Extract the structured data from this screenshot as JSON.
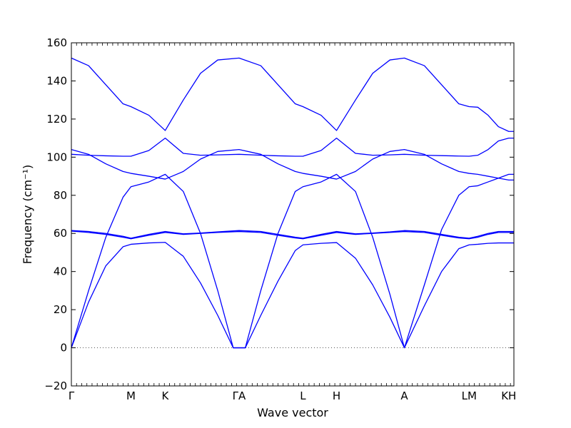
{
  "chart_data": {
    "type": "line",
    "xlabel": "Wave vector",
    "ylabel": "Frequency (cm⁻¹)",
    "ylim": [
      -20,
      160
    ],
    "yticks": [
      -20,
      0,
      20,
      40,
      60,
      80,
      100,
      120,
      140,
      160
    ],
    "grid": false,
    "line_color": "#0000ff",
    "zero_line_color": "#555555",
    "xlim": [
      0,
      25.7
    ],
    "symmetry_points": [
      {
        "label": "Γ",
        "x": 0
      },
      {
        "label": "M",
        "x": 3.46
      },
      {
        "label": "K",
        "x": 5.45
      },
      {
        "label": "ΓA",
        "x": 9.74
      },
      {
        "label": "L",
        "x": 13.45
      },
      {
        "label": "H",
        "x": 15.4
      },
      {
        "label": "A",
        "x": 19.34
      },
      {
        "label": "LM",
        "x": 23.1
      },
      {
        "label": "KH",
        "x": 25.4
      }
    ],
    "series": [
      {
        "x": [
          0,
          1,
          2,
          3,
          3.46,
          4.5,
          5.45,
          6.5,
          7.5,
          8.5,
          9.4,
          9.74,
          10.1,
          11,
          12,
          13,
          13.45,
          14.5,
          15.4,
          16.5,
          17.5,
          18.5,
          19.34,
          20.5,
          21.5,
          22.5,
          23.1,
          23.6,
          24.2,
          24.8,
          25.4,
          25.7
        ],
        "y": [
          0,
          24,
          43,
          53,
          54.3,
          55,
          55.3,
          48,
          34,
          17,
          0,
          0,
          0,
          17,
          35,
          51,
          54,
          54.8,
          55.2,
          47,
          33,
          16,
          0,
          22,
          40,
          52,
          54,
          54.3,
          54.8,
          55,
          55,
          55
        ]
      },
      {
        "x": [
          0,
          1,
          2,
          3,
          3.46,
          4.5,
          5.45,
          6.5,
          7.5,
          8.5,
          9.4,
          9.74,
          10.1,
          11,
          12,
          13,
          13.45,
          14.5,
          15.4,
          16.5,
          17.5,
          18.5,
          19.34,
          20.5,
          21.5,
          22.5,
          23.1,
          23.6,
          24.2,
          24.8,
          25.4,
          25.7
        ],
        "y": [
          0,
          30,
          58,
          79,
          84.5,
          87,
          91,
          82,
          60,
          30,
          0,
          0,
          0,
          30,
          60,
          82,
          84.5,
          87,
          91,
          82,
          58,
          28,
          0,
          33,
          62,
          80,
          84.5,
          85,
          87,
          89,
          91,
          91
        ]
      },
      {
        "x": [
          0,
          1,
          2,
          3,
          3.46,
          4.5,
          5.45,
          6.5,
          7.5,
          8.5,
          9.74,
          11,
          12,
          13,
          13.45,
          14.5,
          15.4,
          16.5,
          17.5,
          18.5,
          19.34,
          20.5,
          21.5,
          22.5,
          23.1,
          23.6,
          24.2,
          24.8,
          25.4,
          25.7
        ],
        "y": [
          61.5,
          61,
          60,
          58.5,
          57.5,
          59.5,
          61,
          59.8,
          60.2,
          60.8,
          61.5,
          61,
          59.5,
          58,
          57.5,
          59.5,
          61,
          59.8,
          60.2,
          60.8,
          61.5,
          61,
          59.5,
          58,
          57.5,
          58.5,
          60,
          61,
          61,
          61
        ]
      },
      {
        "x": [
          0,
          1,
          2,
          3,
          3.46,
          4.5,
          5.45,
          6.5,
          7.5,
          8.5,
          9.74,
          11,
          12,
          13,
          13.45,
          14.5,
          15.4,
          16.5,
          17.5,
          18.5,
          19.34,
          20.5,
          21.5,
          22.5,
          23.1,
          23.6,
          24.2,
          24.8,
          25.4,
          25.7
        ],
        "y": [
          61.2,
          60.5,
          59.5,
          58,
          57.2,
          59,
          60.5,
          59.5,
          60,
          60.5,
          61,
          60.5,
          59,
          57.6,
          57.2,
          59,
          60.5,
          59.5,
          60,
          60.5,
          61,
          60.5,
          59,
          57.6,
          57.2,
          58,
          59.5,
          60.5,
          60.5,
          60.5
        ]
      },
      {
        "x": [
          0,
          1,
          2,
          3,
          3.46,
          4.5,
          5.45,
          6.5,
          7.5,
          8.5,
          9.74,
          11,
          12,
          13,
          13.45,
          14.5,
          15.4,
          16.5,
          17.5,
          18.5,
          19.34,
          20.5,
          21.5,
          22.5,
          23.1,
          23.6,
          24.2,
          24.8,
          25.4,
          25.7
        ],
        "y": [
          104,
          101.5,
          96.5,
          92.5,
          91.5,
          90,
          88.5,
          92.5,
          99,
          103,
          104,
          101.5,
          96.5,
          92.5,
          91.5,
          90,
          88.5,
          92.5,
          99,
          103,
          104,
          101.5,
          96.5,
          92.5,
          91.5,
          91,
          90,
          89,
          88,
          88
        ]
      },
      {
        "x": [
          0,
          1,
          2,
          3,
          3.46,
          4.5,
          5.45,
          6.5,
          7.5,
          8.5,
          9.74,
          11,
          12,
          13,
          13.45,
          14.5,
          15.4,
          16.5,
          17.5,
          18.5,
          19.34,
          20.5,
          21.5,
          22.5,
          23.1,
          23.6,
          24.2,
          24.8,
          25.4,
          25.7
        ],
        "y": [
          101.5,
          101,
          100.7,
          100.5,
          100.5,
          103.5,
          110,
          102,
          101,
          101.2,
          101.5,
          101,
          100.7,
          100.5,
          100.5,
          103.5,
          110,
          102,
          101,
          101.2,
          101.5,
          101,
          100.8,
          100.6,
          100.5,
          101,
          104,
          108.5,
          110,
          110
        ]
      },
      {
        "x": [
          0,
          1,
          2,
          3,
          3.46,
          4.5,
          5.45,
          6.5,
          7.5,
          8.5,
          9.74,
          11,
          12,
          13,
          13.45,
          14.5,
          15.4,
          16.5,
          17.5,
          18.5,
          19.34,
          20.5,
          21.5,
          22.5,
          23.1,
          23.6,
          24.2,
          24.8,
          25.4,
          25.7
        ],
        "y": [
          152,
          148,
          138,
          128,
          126.5,
          122,
          114,
          130,
          144,
          151,
          152,
          148,
          138,
          128,
          126.5,
          122,
          114,
          130,
          144,
          151,
          152,
          148,
          138,
          128,
          126.5,
          126.2,
          122,
          116,
          113.5,
          113.5
        ]
      }
    ]
  }
}
